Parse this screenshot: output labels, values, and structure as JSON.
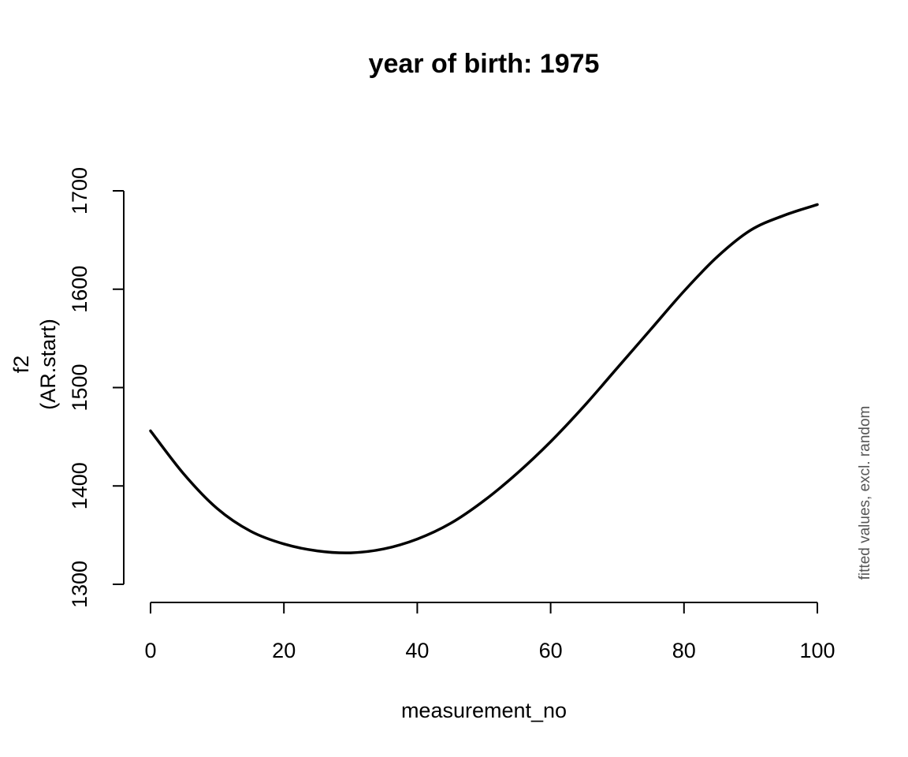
{
  "chart_data": {
    "type": "line",
    "title": "year of birth: 1975",
    "xlabel": "measurement_no",
    "ylabel_lines": [
      "f2",
      "(AR.start)"
    ],
    "side_note": "fitted values, excl. random",
    "xlim": [
      0,
      100
    ],
    "ylim": [
      1300,
      1700
    ],
    "xticks": [
      0,
      20,
      40,
      60,
      80,
      100
    ],
    "yticks": [
      1300,
      1400,
      1500,
      1600,
      1700
    ],
    "grid": false,
    "legend": "none",
    "series": [
      {
        "color": "#000000",
        "x": [
          0,
          5,
          10,
          15,
          20,
          25,
          30,
          35,
          40,
          45,
          50,
          55,
          60,
          65,
          70,
          75,
          80,
          85,
          90,
          95,
          100
        ],
        "y": [
          1456,
          1412,
          1377,
          1354,
          1341,
          1334,
          1332,
          1336,
          1346,
          1362,
          1385,
          1413,
          1445,
          1481,
          1520,
          1559,
          1598,
          1633,
          1660,
          1675,
          1686
        ]
      }
    ]
  }
}
